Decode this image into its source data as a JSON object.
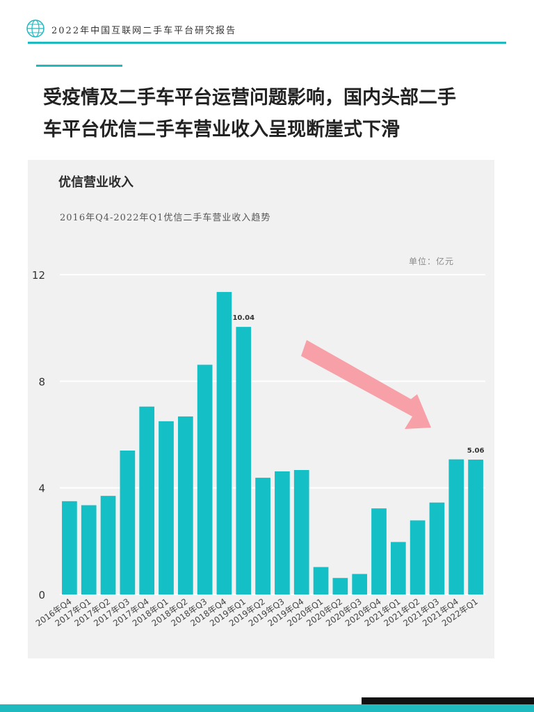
{
  "header": {
    "report_title": "2022年中国互联网二手车平台研究报告",
    "logo_icon": "globe-icon"
  },
  "headline": {
    "line1": "受疫情及二手车平台运营问题影响，国内头部二手",
    "line2": "车平台优信二手车营业收入呈现断崖式下滑"
  },
  "colors": {
    "accent": "#1fb9c0",
    "bar": "#14bfc6",
    "arrow": "#f7a0a8"
  },
  "chart_data": {
    "type": "bar",
    "title": "优信营业收入",
    "subtitle": "2016年Q4-2022年Q1优信二手车营业收入趋势",
    "unit": "单位：亿元",
    "categories": [
      "2016年Q4",
      "2017年Q1",
      "2017年Q2",
      "2017年Q3",
      "2017年Q4",
      "2018年Q1",
      "2018年Q2",
      "2018年Q3",
      "2018年Q4",
      "2019年Q1",
      "2019年Q2",
      "2019年Q3",
      "2019年Q4",
      "2020年Q1",
      "2020年Q2",
      "2020年Q3",
      "2020年Q4",
      "2021年Q1",
      "2021年Q2",
      "2021年Q3",
      "2021年Q4",
      "2022年Q1"
    ],
    "values": [
      3.5,
      3.35,
      3.7,
      5.4,
      7.05,
      6.5,
      6.68,
      8.62,
      11.35,
      10.04,
      4.38,
      4.62,
      4.67,
      1.03,
      0.62,
      0.77,
      3.23,
      1.97,
      2.78,
      3.45,
      5.07,
      5.06
    ],
    "data_labels": [
      {
        "index": 9,
        "text": "10.04"
      },
      {
        "index": 21,
        "text": "5.06"
      }
    ],
    "yticks": [
      "0",
      "4",
      "8",
      "12"
    ],
    "ylim": [
      0,
      12
    ],
    "grid": true,
    "annotation": "downward trend arrow"
  }
}
